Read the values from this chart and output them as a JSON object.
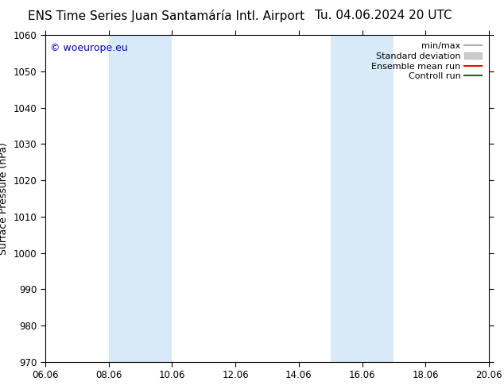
{
  "title_left": "ENS Time Series Juan Santamáría Intl. Airport",
  "title_right": "Tu. 04.06.2024 20 UTC",
  "ylabel": "Surface Pressure (hPa)",
  "ylim": [
    970,
    1060
  ],
  "yticks": [
    970,
    980,
    990,
    1000,
    1010,
    1020,
    1030,
    1040,
    1050,
    1060
  ],
  "xlim_start": 0,
  "xlim_end": 14,
  "xtick_labels": [
    "06.06",
    "08.06",
    "10.06",
    "12.06",
    "14.06",
    "16.06",
    "18.06",
    "20.06"
  ],
  "xtick_positions": [
    0,
    2,
    4,
    6,
    8,
    10,
    12,
    14
  ],
  "shade_bands": [
    {
      "x_start": 2,
      "x_end": 4
    },
    {
      "x_start": 9,
      "x_end": 11
    }
  ],
  "shade_color": "#d8eaf8",
  "background_color": "#ffffff",
  "watermark_text": "© woeurope.eu",
  "watermark_color": "#0000cc",
  "legend_items": [
    {
      "label": "min/max",
      "color": "#aaaaaa",
      "type": "line"
    },
    {
      "label": "Standard deviation",
      "color": "#cccccc",
      "type": "fill"
    },
    {
      "label": "Ensemble mean run",
      "color": "#ff0000",
      "type": "line"
    },
    {
      "label": "Controll run",
      "color": "#007700",
      "type": "line"
    }
  ],
  "title_fontsize": 11,
  "axis_label_fontsize": 9,
  "tick_fontsize": 8.5,
  "watermark_fontsize": 9,
  "legend_fontsize": 8
}
